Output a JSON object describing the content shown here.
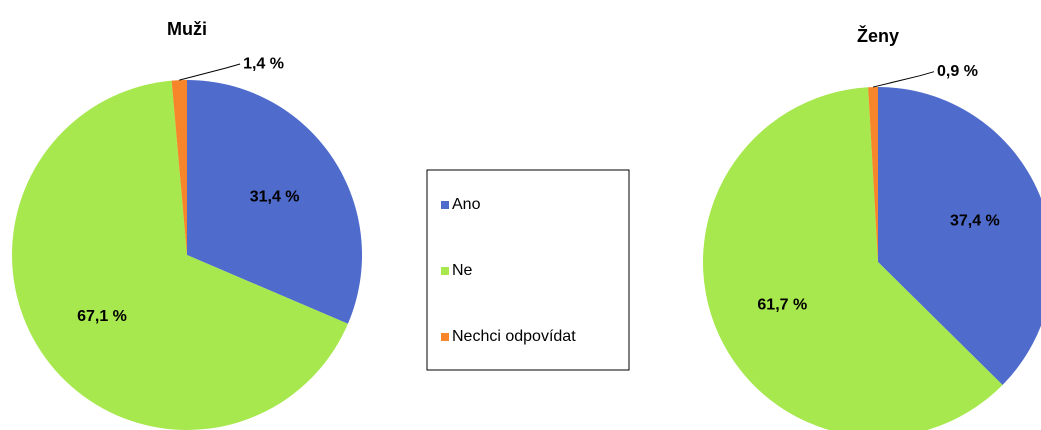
{
  "chart_data": [
    {
      "type": "pie",
      "title": "Muži",
      "categories": [
        "Ano",
        "Ne",
        "Nechci odpovídat"
      ],
      "values": [
        31.4,
        67.1,
        1.4
      ],
      "value_labels": [
        "31,4 %",
        "67,1 %",
        "1,4 %"
      ],
      "colors": [
        "#4f6bcc",
        "#a6e84d",
        "#f7862a"
      ]
    },
    {
      "type": "pie",
      "title": "Ženy",
      "categories": [
        "Ano",
        "Ne",
        "Nechci odpovídat"
      ],
      "values": [
        37.4,
        61.7,
        0.9
      ],
      "value_labels": [
        "37,4 %",
        "61,7 %",
        "0,9 %"
      ],
      "colors": [
        "#4f6bcc",
        "#a6e84d",
        "#f7862a"
      ]
    }
  ]
}
